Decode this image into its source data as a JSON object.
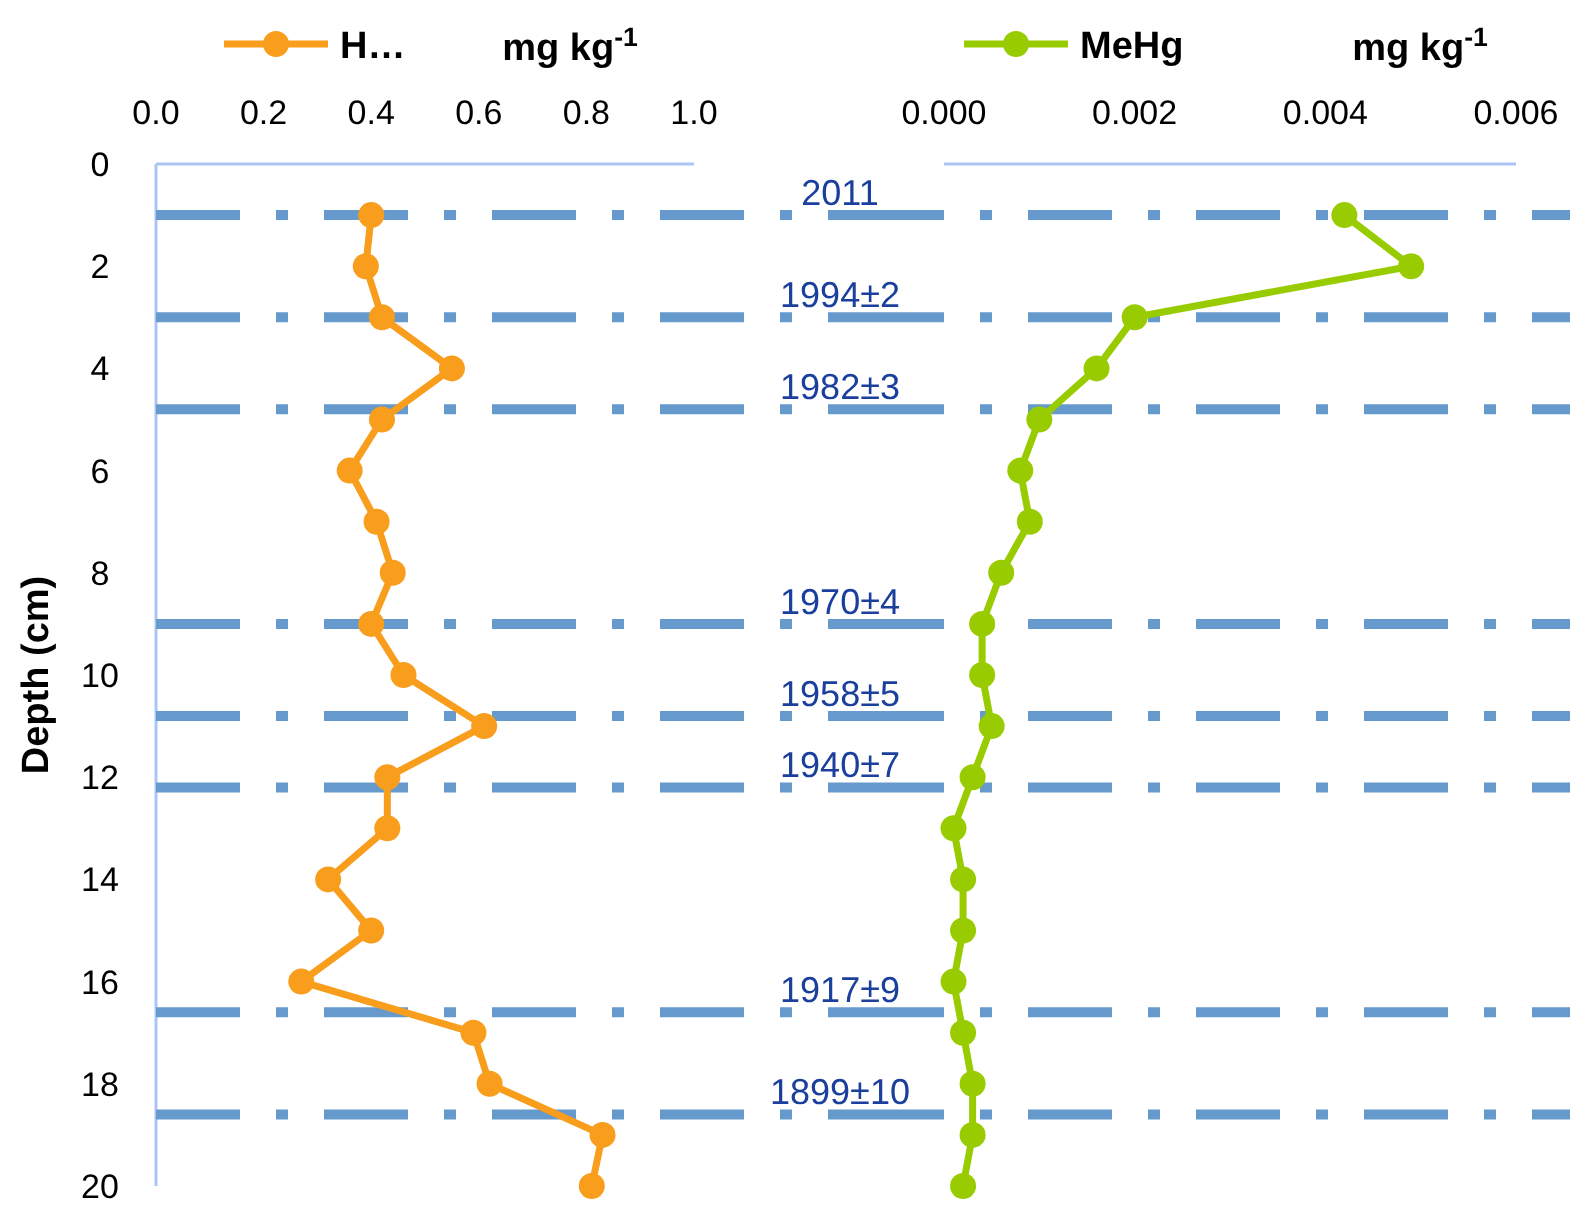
{
  "chart_data": [
    {
      "type": "line",
      "xlabel": "mg kg$^{-1}$",
      "ylabel": "Depth (cm)",
      "xlim": [
        0,
        1
      ],
      "xticks": [
        {
          "value": 0,
          "label": "0.0"
        },
        {
          "value": 0.2,
          "label": "0.2"
        },
        {
          "value": 0.4,
          "label": "0.4"
        },
        {
          "value": 0.6,
          "label": "0.6"
        },
        {
          "value": 0.8,
          "label": "0.8"
        },
        {
          "value": 1,
          "label": "1.0"
        }
      ],
      "ylim": [
        20,
        0
      ],
      "yticks": [
        0,
        2,
        4,
        6,
        8,
        10,
        12,
        14,
        16,
        18,
        20
      ],
      "orientation": "horizontal",
      "series": [
        {
          "name": "H…",
          "color": "#f99d1c",
          "values": [
            0.4,
            0.39,
            0.42,
            0.55,
            0.42,
            0.36,
            0.41,
            0.44,
            0.4,
            0.46,
            0.61,
            0.43,
            0.43,
            0.32,
            0.4,
            0.27,
            0.59,
            0.62,
            0.83,
            0.81
          ],
          "x": [
            1,
            2,
            3,
            4,
            5,
            6,
            7,
            8,
            9,
            10,
            11,
            12,
            13,
            14,
            15,
            16,
            17,
            18,
            19,
            20
          ]
        }
      ],
      "marker": "circle",
      "legend": "top",
      "grid": false,
      "annotations": [
        {
          "text": "2011",
          "y": 1
        },
        {
          "text": "1994±2",
          "y": 3
        },
        {
          "text": "1982±3",
          "y": 4.8
        },
        {
          "text": "1970±4",
          "y": 9
        },
        {
          "text": "1958±5",
          "y": 10.8
        },
        {
          "text": "1940±7",
          "y": 12.2
        },
        {
          "text": "1917±9",
          "y": 16.6
        },
        {
          "text": "1899±10",
          "y": 18.6
        }
      ],
      "ref_lines": [
        {
          "axis": "y",
          "value": 1,
          "color": "#6699cc"
        },
        {
          "axis": "y",
          "value": 3,
          "color": "#6699cc"
        },
        {
          "axis": "y",
          "value": 4.8,
          "color": "#6699cc"
        },
        {
          "axis": "y",
          "value": 9,
          "color": "#6699cc"
        },
        {
          "axis": "y",
          "value": 10.8,
          "color": "#6699cc"
        },
        {
          "axis": "y",
          "value": 12.2,
          "color": "#6699cc"
        },
        {
          "axis": "y",
          "value": 16.6,
          "color": "#6699cc"
        },
        {
          "axis": "y",
          "value": 18.6,
          "color": "#6699cc"
        }
      ]
    },
    {
      "type": "line",
      "xlabel": "mg kg$^{-1}$",
      "xlim": [
        0,
        0.006
      ],
      "xticks": [
        {
          "value": 0,
          "label": "0.000"
        },
        {
          "value": 0.002,
          "label": "0.002"
        },
        {
          "value": 0.004,
          "label": "0.004"
        },
        {
          "value": 0.006,
          "label": "0.006"
        }
      ],
      "ylim": [
        20,
        0
      ],
      "tick_labels": "x",
      "orientation": "horizontal",
      "series": [
        {
          "name": "MeHg",
          "color": "#99cc00",
          "values": [
            0.0042,
            0.0049,
            0.002,
            0.0016,
            0.001,
            0.0008,
            0.0009,
            0.0006,
            0.0004,
            0.0004,
            0.0005,
            0.0003,
            0.0001,
            0.0002,
            0.0002,
            0.0001,
            0.0002,
            0.0003,
            0.0003,
            0.0002
          ],
          "x": [
            1,
            2,
            3,
            4,
            5,
            6,
            7,
            8,
            9,
            10,
            11,
            12,
            13,
            14,
            15,
            16,
            17,
            18,
            19,
            20
          ]
        }
      ],
      "marker": "circle",
      "legend": "top",
      "grid": false,
      "ref_lines": [
        {
          "axis": "y",
          "value": 1,
          "color": "#6699cc"
        },
        {
          "axis": "y",
          "value": 3,
          "color": "#6699cc"
        },
        {
          "axis": "y",
          "value": 4.8,
          "color": "#6699cc"
        },
        {
          "axis": "y",
          "value": 9,
          "color": "#6699cc"
        },
        {
          "axis": "y",
          "value": 10.8,
          "color": "#6699cc"
        },
        {
          "axis": "y",
          "value": 12.2,
          "color": "#6699cc"
        },
        {
          "axis": "y",
          "value": 16.6,
          "color": "#6699cc"
        },
        {
          "axis": "y",
          "value": 18.6,
          "color": "#6699cc"
        }
      ]
    }
  ]
}
